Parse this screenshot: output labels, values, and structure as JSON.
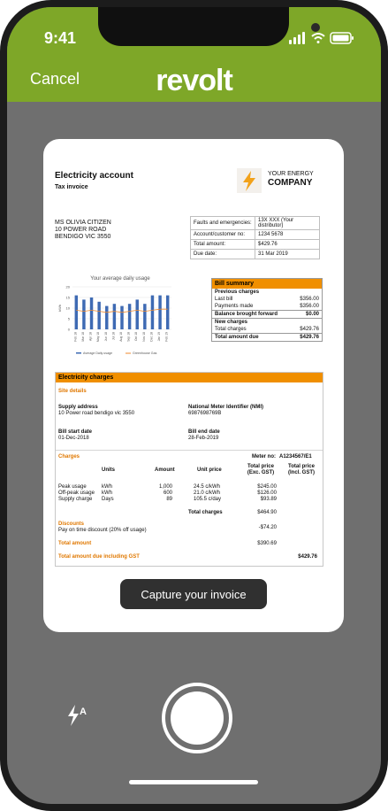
{
  "status": {
    "time": "9:41"
  },
  "header": {
    "cancel_label": "Cancel",
    "brand": "revolt"
  },
  "invoice": {
    "title": "Electricity account",
    "subtitle": "Tax invoice",
    "company_top": "YOUR ENERGY",
    "company_name": "COMPANY",
    "address": [
      "MS OLIVIA CITIZEN",
      "10 POWER ROAD",
      "BENDIGO VIC 3550"
    ],
    "info_rows": [
      [
        "Faults and emergencies:",
        "13X XXX (Your distributor)"
      ],
      [
        "Account/customer no:",
        "1234 5678"
      ],
      [
        "Total amount:",
        "$429.76"
      ],
      [
        "Due date:",
        "31 Mar 2019"
      ]
    ],
    "chart_title": "Your average daily usage",
    "bill_summary": {
      "title": "Bill summary",
      "previous_label": "Previous charges",
      "last_bill_label": "Last bill",
      "last_bill_value": "$356.00",
      "payments_label": "Payments made",
      "payments_value": "$356.00",
      "balance_label": "Balance brought forward",
      "balance_value": "$0.00",
      "new_label": "New charges",
      "total_charges_label": "Total charges",
      "total_charges_value": "$429.76",
      "total_due_label": "Total amount due",
      "total_due_value": "$429.76"
    },
    "charges": {
      "title": "Electricity charges",
      "site_details": "Site details",
      "supply_address_label": "Supply address",
      "supply_address": "10 Power road bendigo vic 3550",
      "nmi_label": "National Meter Identifier (NMI)",
      "nmi": "6987698769B",
      "start_label": "Bill start date",
      "start": "01-Dec-2018",
      "end_label": "Bill end date",
      "end": "28-Feb-2019",
      "charges_label": "Charges",
      "meter_label": "Meter no:",
      "meter": "A1234567/E1",
      "col_units": "Units",
      "col_amount": "Amount",
      "col_unit_price": "Unit price",
      "col_excl": "Total price (Exc. GST)",
      "col_incl": "Total price (Incl. GST)",
      "rows": [
        {
          "name": "Peak usage",
          "units": "kWh",
          "amount": "1,000",
          "price": "24.5 c/kWh",
          "total": "$245.00"
        },
        {
          "name": "Off-peak usage",
          "units": "kWh",
          "amount": "600",
          "price": "21.0 c/kWh",
          "total": "$126.00"
        },
        {
          "name": "Supply charge",
          "units": "Days",
          "amount": "89",
          "price": "105.5 c/day",
          "total": "$93.89"
        }
      ],
      "total_charges_label": "Total charges",
      "total_charges": "$464.90",
      "discounts_label": "Discounts",
      "discount_desc": "Pay on time discount (20% off usage)",
      "discount": "-$74.20",
      "total_amount_label": "Total amount",
      "total_amount": "$390.69",
      "total_due_label": "Total amount due including GST",
      "total_due": "$429.76"
    }
  },
  "capture_label": "Capture your invoice",
  "chart_data": {
    "type": "bar",
    "title": "Your average daily usage",
    "ylabel": "kWh",
    "ylim": [
      0,
      20
    ],
    "categories": [
      "Feb 18",
      "Mar 18",
      "Apr 18",
      "May 18",
      "Jun 18",
      "Jul 18",
      "Aug 18",
      "Sep 18",
      "Oct 18",
      "Nov 18",
      "Dec 18",
      "Jan 19",
      "Feb 19"
    ],
    "series": [
      {
        "name": "Average Daily usage",
        "values": [
          16,
          14,
          15,
          13,
          11,
          12,
          11,
          12,
          14,
          12,
          16,
          16,
          16
        ]
      },
      {
        "name": "Greenhouse Gas",
        "values": [
          9,
          8.5,
          9,
          8.5,
          8,
          8.5,
          8,
          8.5,
          9,
          8.5,
          9,
          9.5,
          9.5
        ]
      }
    ]
  }
}
